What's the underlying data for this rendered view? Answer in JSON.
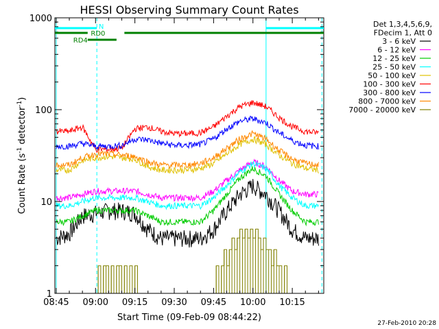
{
  "chart_data": {
    "type": "line",
    "title": "HESSI Observing Summary Count Rates",
    "xlabel": "Start Time (09-Feb-09 08:44:22)",
    "ylabel": "Count Rate (s⁻¹ detector⁻¹)",
    "ylabel_main": "Count Rate (s",
    "ylabel_sup1": "-1",
    "ylabel_mid": " detector",
    "ylabel_sup2": "-1",
    "ylabel_end": ")",
    "yscale": "log",
    "ylim": [
      1,
      1000
    ],
    "xlim_min": [
      -0.5,
      102
    ],
    "x_tick_labels": [
      "08:45",
      "09:00",
      "09:15",
      "09:30",
      "09:45",
      "10:00",
      "10:15"
    ],
    "x_ticks_min": [
      0,
      15,
      30,
      45,
      60,
      75,
      90
    ],
    "y_tick_labels": [
      "1",
      "10",
      "100",
      "1000"
    ],
    "y_ticks": [
      1,
      10,
      100,
      1000
    ],
    "legend_header": [
      "Det 1,3,4,5,6,9,",
      "FDecim 1, Att 0"
    ],
    "series": [
      {
        "name": "3 - 6 keV",
        "color": "#000000",
        "x": [
          0,
          5,
          10,
          15,
          20,
          25,
          30,
          35,
          40,
          45,
          50,
          55,
          60,
          65,
          70,
          75,
          80,
          85,
          90,
          95,
          100
        ],
        "y": [
          4,
          4.5,
          7,
          7.5,
          8,
          8,
          7.5,
          5,
          4,
          4,
          4,
          4,
          5,
          8,
          12,
          15,
          12,
          8,
          5,
          4,
          4
        ]
      },
      {
        "name": "6 - 12 keV",
        "color": "#ff00ff",
        "x": [
          0,
          5,
          10,
          15,
          20,
          25,
          30,
          35,
          40,
          45,
          50,
          55,
          60,
          65,
          70,
          75,
          80,
          85,
          90,
          95,
          100
        ],
        "y": [
          11,
          11,
          12,
          13,
          13,
          13,
          13,
          12,
          11,
          11,
          11,
          11,
          13,
          17,
          22,
          27,
          24,
          17,
          13,
          12,
          12
        ]
      },
      {
        "name": "12 - 25 keV",
        "color": "#00cc00",
        "x": [
          0,
          5,
          10,
          15,
          20,
          25,
          30,
          35,
          40,
          45,
          50,
          55,
          60,
          65,
          70,
          75,
          80,
          85,
          90,
          95,
          100
        ],
        "y": [
          6,
          6,
          7,
          8,
          8,
          8,
          8,
          7,
          6,
          6,
          6,
          6,
          8,
          12,
          18,
          23,
          19,
          12,
          8,
          6,
          6
        ]
      },
      {
        "name": "25 - 50 keV",
        "color": "#00ffff",
        "x": [
          0,
          5,
          10,
          15,
          20,
          25,
          30,
          35,
          40,
          45,
          50,
          55,
          60,
          65,
          70,
          75,
          80,
          85,
          90,
          95,
          100
        ],
        "y": [
          9,
          9,
          10,
          11,
          11,
          11,
          11,
          10,
          9,
          9,
          9,
          9,
          11,
          15,
          21,
          26,
          23,
          15,
          11,
          9,
          9
        ]
      },
      {
        "name": "50 - 100 keV",
        "color": "#e0c000",
        "x": [
          0,
          5,
          10,
          15,
          20,
          25,
          30,
          35,
          40,
          45,
          50,
          55,
          60,
          65,
          70,
          75,
          80,
          85,
          90,
          95,
          100
        ],
        "y": [
          22,
          22,
          28,
          30,
          31,
          30,
          29,
          24,
          22,
          22,
          22,
          23,
          26,
          33,
          42,
          48,
          42,
          32,
          26,
          23,
          22
        ]
      },
      {
        "name": "100 - 300 keV",
        "color": "#ff0000",
        "x": [
          0,
          5,
          10,
          15,
          20,
          25,
          30,
          35,
          40,
          45,
          50,
          55,
          60,
          65,
          70,
          75,
          80,
          85,
          90,
          95,
          100
        ],
        "y": [
          58,
          58,
          65,
          37,
          37,
          38,
          62,
          65,
          58,
          55,
          55,
          56,
          65,
          85,
          108,
          120,
          108,
          82,
          65,
          58,
          56
        ]
      },
      {
        "name": "300 - 800 keV",
        "color": "#0000ff",
        "x": [
          0,
          5,
          10,
          15,
          20,
          25,
          30,
          35,
          40,
          45,
          50,
          55,
          60,
          65,
          70,
          75,
          80,
          85,
          90,
          95,
          100
        ],
        "y": [
          40,
          40,
          43,
          40,
          40,
          41,
          48,
          47,
          43,
          41,
          41,
          42,
          48,
          62,
          75,
          80,
          72,
          56,
          46,
          41,
          40
        ]
      },
      {
        "name": "800 - 7000 keV",
        "color": "#ff8800",
        "x": [
          0,
          5,
          10,
          15,
          20,
          25,
          30,
          35,
          40,
          45,
          50,
          55,
          60,
          65,
          70,
          75,
          80,
          85,
          90,
          95,
          100
        ],
        "y": [
          25,
          25,
          30,
          33,
          33,
          32,
          31,
          27,
          25,
          25,
          25,
          26,
          30,
          38,
          48,
          55,
          48,
          36,
          29,
          26,
          25
        ]
      },
      {
        "name": "7000 - 20000 keV",
        "color": "#808000",
        "x": [
          15,
          16,
          17,
          18,
          19,
          20,
          21,
          22,
          23,
          24,
          25,
          26,
          27,
          28,
          29,
          30,
          31,
          60,
          61,
          62,
          63,
          64,
          65,
          66,
          67,
          68,
          69,
          70,
          71,
          72,
          73,
          74,
          75,
          76,
          77,
          78,
          79,
          80,
          81,
          82,
          83,
          84,
          85,
          86,
          87,
          88,
          89,
          90
        ],
        "y": [
          1,
          2,
          1,
          2,
          2,
          1,
          2,
          1,
          2,
          2,
          1,
          2,
          1,
          2,
          1,
          2,
          1,
          1,
          2,
          1,
          2,
          3,
          2,
          3,
          4,
          3,
          4,
          5,
          4,
          5,
          4,
          5,
          4,
          5,
          4,
          3,
          4,
          3,
          3,
          2,
          3,
          2,
          2,
          1,
          2,
          1,
          1,
          1
        ]
      }
    ],
    "bars": [
      {
        "label": "N",
        "color": "#00ffff",
        "ranges": [
          [
            -0.5,
            15.5
          ],
          [
            80,
            102
          ]
        ]
      },
      {
        "label": "RD0",
        "color": "#008000",
        "ranges": [
          [
            -0.5,
            12
          ],
          [
            26,
            102
          ]
        ]
      },
      {
        "label": "RD4",
        "color": "#008000",
        "ranges": [
          [
            12,
            23
          ]
        ]
      }
    ],
    "vlines_solid_min": [
      0,
      80
    ],
    "vlines_dashed_min": [
      15.5,
      101.3
    ],
    "grid": false,
    "legend_position": "right"
  },
  "footer": {
    "timestamp": "27-Feb-2010 20:28"
  }
}
